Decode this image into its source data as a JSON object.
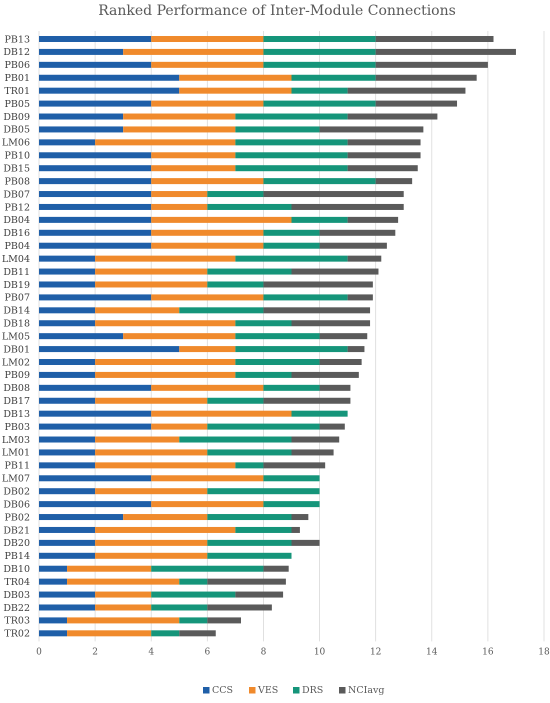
{
  "chart_data": {
    "type": "bar",
    "orientation": "horizontal",
    "stacked": true,
    "title": "Ranked Performance of Inter-Module Connections",
    "xlabel": "",
    "ylabel": "",
    "xlim": [
      0,
      18
    ],
    "xticks": [
      0,
      2,
      4,
      6,
      8,
      10,
      12,
      14,
      16,
      18
    ],
    "grid": "vertical",
    "legend_position": "bottom",
    "categories": [
      "PB13",
      "DB12",
      "PB06",
      "PB01",
      "TR01",
      "PB05",
      "DB09",
      "DB05",
      "LM06",
      "PB10",
      "DB15",
      "PB08",
      "DB07",
      "PB12",
      "DB04",
      "DB16",
      "PB04",
      "LM04",
      "DB11",
      "DB19",
      "PB07",
      "DB14",
      "DB18",
      "LM05",
      "DB01",
      "LM02",
      "PB09",
      "DB08",
      "DB17",
      "DB13",
      "PB03",
      "LM03",
      "LM01",
      "PB11",
      "LM07",
      "DB02",
      "DB06",
      "PB02",
      "DB21",
      "DB20",
      "PB14",
      "DB10",
      "TR04",
      "DB03",
      "DB22",
      "TR03",
      "TR02"
    ],
    "series": [
      {
        "name": "CCS",
        "color": "#1f5fa8",
        "values": [
          4,
          3,
          4,
          5,
          5,
          4,
          3,
          3,
          2,
          4,
          4,
          4,
          4,
          4,
          4,
          4,
          4,
          2,
          2,
          2,
          4,
          2,
          2,
          3,
          5,
          2,
          2,
          4,
          2,
          4,
          4,
          2,
          2,
          2,
          4,
          2,
          4,
          3,
          2,
          2,
          2,
          1,
          1,
          2,
          2,
          1,
          1
        ]
      },
      {
        "name": "VES",
        "color": "#f08a2c",
        "values": [
          4,
          5,
          4,
          4,
          4,
          4,
          4,
          4,
          5,
          3,
          3,
          4,
          2,
          2,
          5,
          4,
          4,
          5,
          4,
          4,
          4,
          3,
          5,
          4,
          2,
          5,
          5,
          4,
          4,
          5,
          2,
          3,
          4,
          5,
          4,
          4,
          4,
          3,
          5,
          4,
          4,
          3,
          4,
          2,
          2,
          4,
          3
        ]
      },
      {
        "name": "DRS",
        "color": "#15957a",
        "values": [
          4,
          4,
          4,
          3,
          2,
          4,
          4,
          3,
          4,
          4,
          4,
          4,
          2,
          3,
          2,
          2,
          2,
          4,
          3,
          2,
          3,
          3,
          2,
          3,
          4,
          3,
          2,
          2,
          2,
          2,
          4,
          4,
          3,
          1,
          2,
          4,
          2,
          3,
          2,
          3,
          3,
          4,
          1,
          3,
          2,
          1,
          1
        ]
      },
      {
        "name": "NCIavg",
        "color": "#5a5a5a",
        "values": [
          4.2,
          5.0,
          4.0,
          3.6,
          4.2,
          2.9,
          3.2,
          3.7,
          2.6,
          2.6,
          2.5,
          1.3,
          5.0,
          4.0,
          1.8,
          2.7,
          2.4,
          1.2,
          3.1,
          3.9,
          0.9,
          3.8,
          2.8,
          1.7,
          0.6,
          1.5,
          2.4,
          1.1,
          3.1,
          0.0,
          0.9,
          1.7,
          1.5,
          2.2,
          0.0,
          0.0,
          0.0,
          0.6,
          0.3,
          1.0,
          0.0,
          0.9,
          2.8,
          1.7,
          2.3,
          1.2,
          1.3
        ]
      }
    ]
  }
}
